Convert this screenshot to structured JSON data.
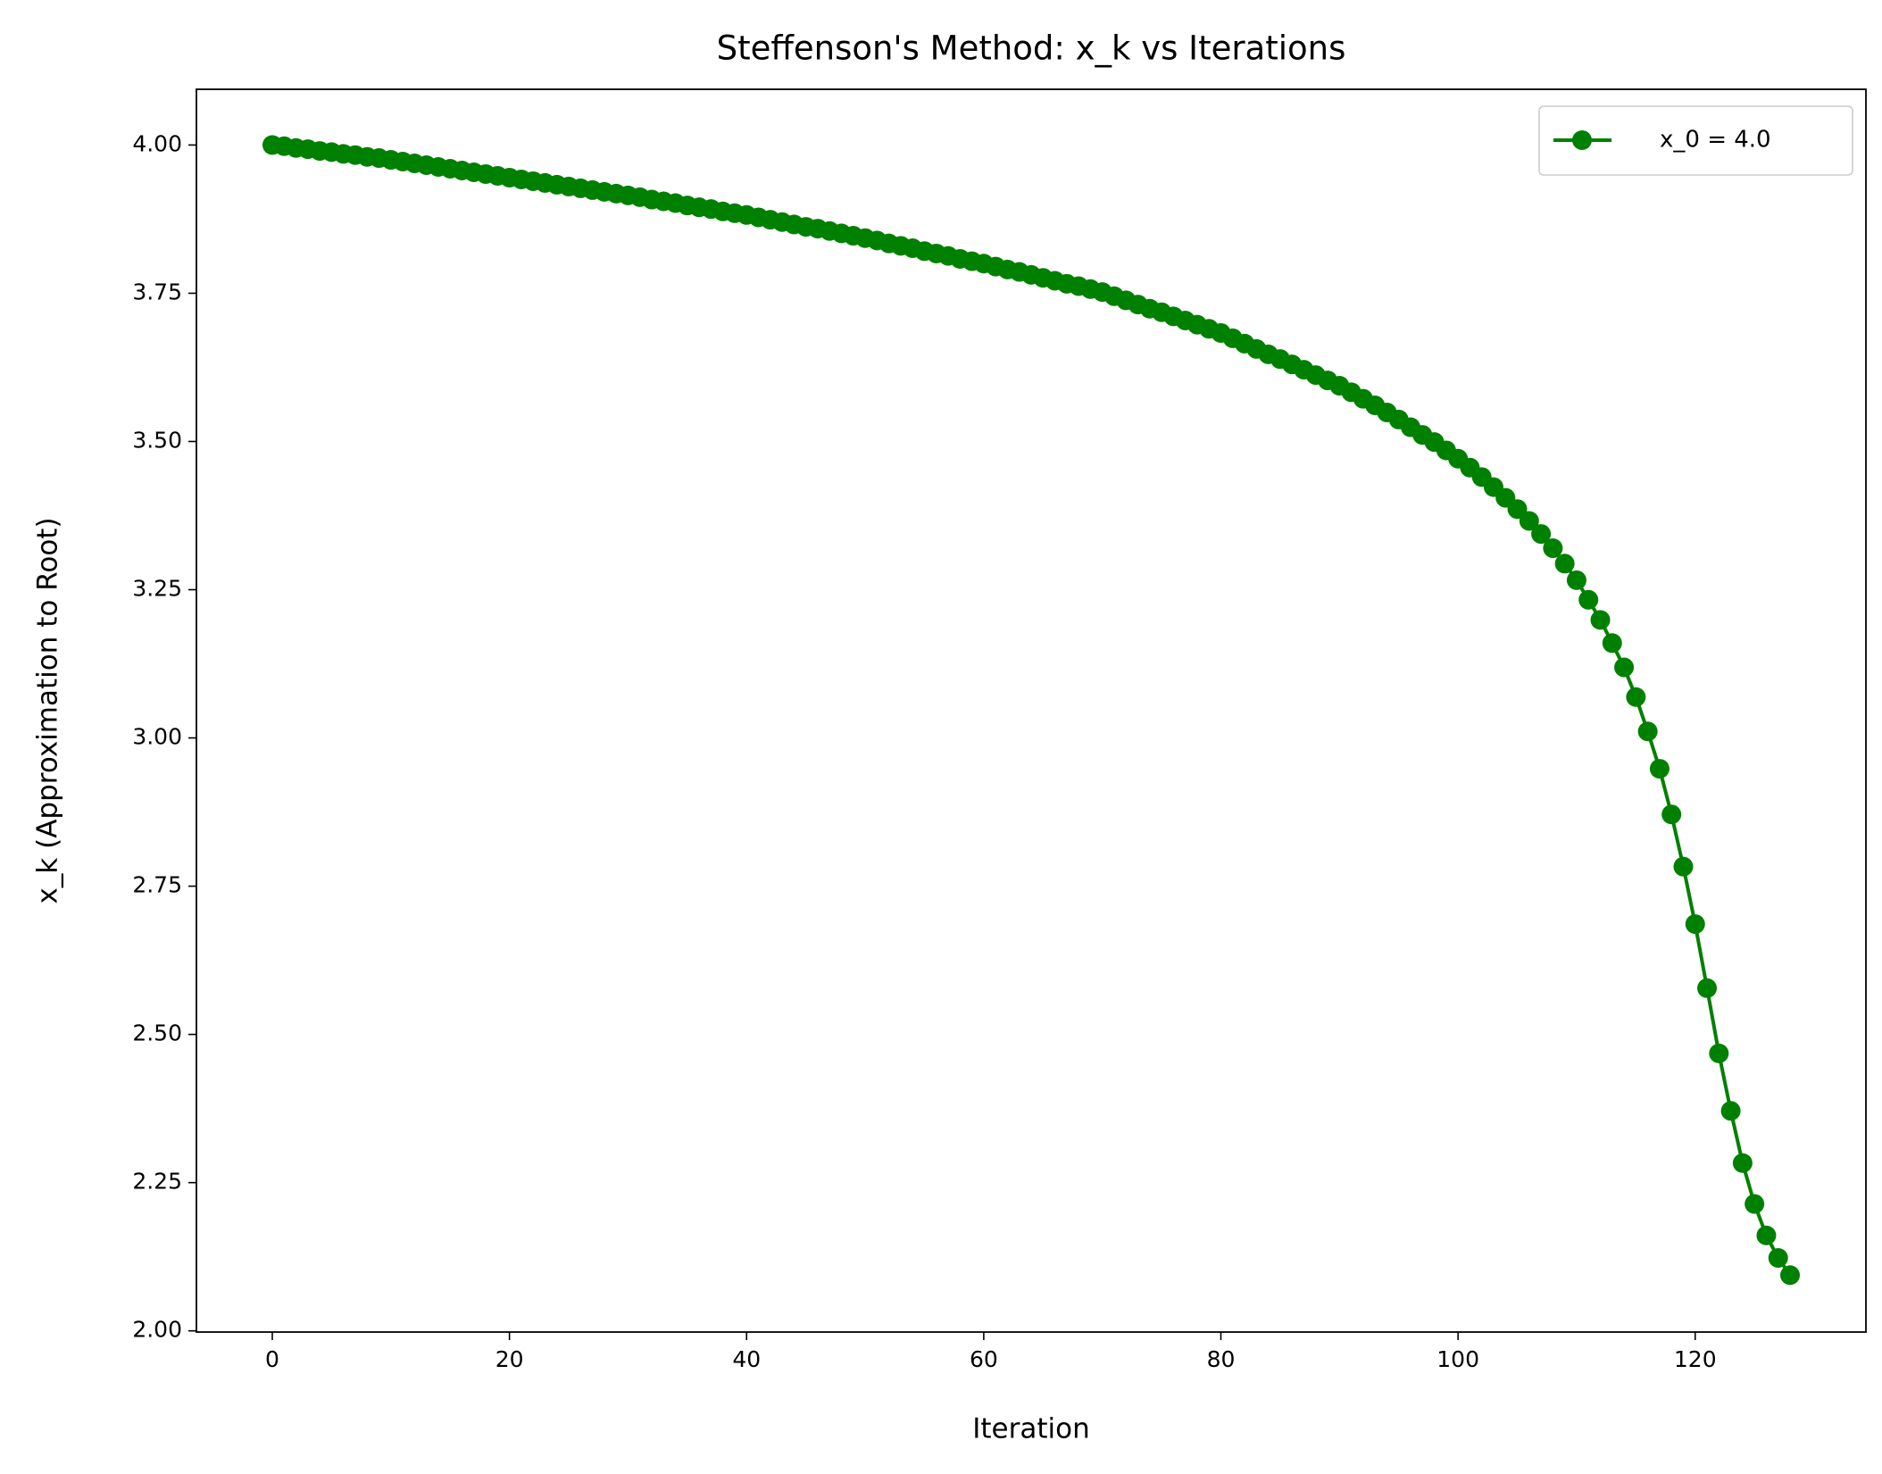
{
  "chart_data": {
    "type": "line",
    "title": "Steffenson's Method: x_k vs Iterations",
    "x_label": "Iteration",
    "y_label": "x_k (Approximation to Root)",
    "x": [
      0,
      1,
      2,
      3,
      4,
      5,
      6,
      7,
      8,
      9,
      10,
      11,
      12,
      13,
      14,
      15,
      16,
      17,
      18,
      19,
      20,
      21,
      22,
      23,
      24,
      25,
      26,
      27,
      28,
      29,
      30,
      31,
      32,
      33,
      34,
      35,
      36,
      37,
      38,
      39,
      40,
      41,
      42,
      43,
      44,
      45,
      46,
      47,
      48,
      49,
      50,
      51,
      52,
      53,
      54,
      55,
      56,
      57,
      58,
      59,
      60,
      61,
      62,
      63,
      64,
      65,
      66,
      67,
      68,
      69,
      70,
      71,
      72,
      73,
      74,
      75,
      76,
      77,
      78,
      79,
      80,
      81,
      82,
      83,
      84,
      85,
      86,
      87,
      88,
      89,
      90,
      91,
      92,
      93,
      94,
      95,
      96,
      97,
      98,
      99,
      100,
      101,
      102,
      103,
      104,
      105,
      106,
      107,
      108,
      109,
      110,
      111,
      112,
      113,
      114,
      115,
      116,
      117,
      118,
      119,
      120,
      121,
      122,
      123,
      124,
      125,
      126,
      127,
      128
    ],
    "series": [
      {
        "name": "x_0 = 4.0",
        "color": "#008000",
        "values": [
          4.0,
          3.998,
          3.995,
          3.993,
          3.99,
          3.988,
          3.985,
          3.983,
          3.98,
          3.978,
          3.975,
          3.972,
          3.969,
          3.966,
          3.963,
          3.96,
          3.957,
          3.954,
          3.951,
          3.948,
          3.945,
          3.942,
          3.939,
          3.936,
          3.933,
          3.93,
          3.927,
          3.924,
          3.921,
          3.918,
          3.915,
          3.912,
          3.908,
          3.905,
          3.902,
          3.898,
          3.895,
          3.892,
          3.888,
          3.885,
          3.882,
          3.878,
          3.874,
          3.87,
          3.866,
          3.862,
          3.859,
          3.855,
          3.851,
          3.847,
          3.843,
          3.839,
          3.834,
          3.83,
          3.826,
          3.821,
          3.817,
          3.813,
          3.808,
          3.804,
          3.8,
          3.795,
          3.79,
          3.786,
          3.781,
          3.776,
          3.771,
          3.766,
          3.762,
          3.757,
          3.752,
          3.745,
          3.738,
          3.731,
          3.724,
          3.718,
          3.711,
          3.704,
          3.697,
          3.69,
          3.683,
          3.674,
          3.665,
          3.656,
          3.647,
          3.639,
          3.63,
          3.621,
          3.612,
          3.603,
          3.594,
          3.583,
          3.572,
          3.561,
          3.549,
          3.537,
          3.524,
          3.511,
          3.499,
          3.485,
          3.471,
          3.456,
          3.44,
          3.423,
          3.405,
          3.386,
          3.366,
          3.344,
          3.32,
          3.294,
          3.266,
          3.233,
          3.199,
          3.16,
          3.119,
          3.069,
          3.011,
          2.948,
          2.871,
          2.783,
          2.686,
          2.578,
          2.468,
          2.371,
          2.283,
          2.214,
          2.161,
          2.123,
          2.094
        ]
      }
    ],
    "xlim": [
      -6.4,
      134.4
    ],
    "ylim": [
      1.998,
      4.094
    ],
    "xticks": [
      0,
      20,
      40,
      60,
      80,
      100,
      120
    ],
    "yticks": [
      {
        "value": 2,
        "label": "2.00"
      },
      2.25,
      {
        "value": 2.5,
        "label": "2.50"
      },
      2.75,
      {
        "value": 3,
        "label": "3.00"
      },
      3.25,
      {
        "value": 3.5,
        "label": "3.50"
      },
      3.75,
      {
        "value": 4,
        "label": "4.00"
      }
    ],
    "legend": "upper right",
    "grid": false
  }
}
